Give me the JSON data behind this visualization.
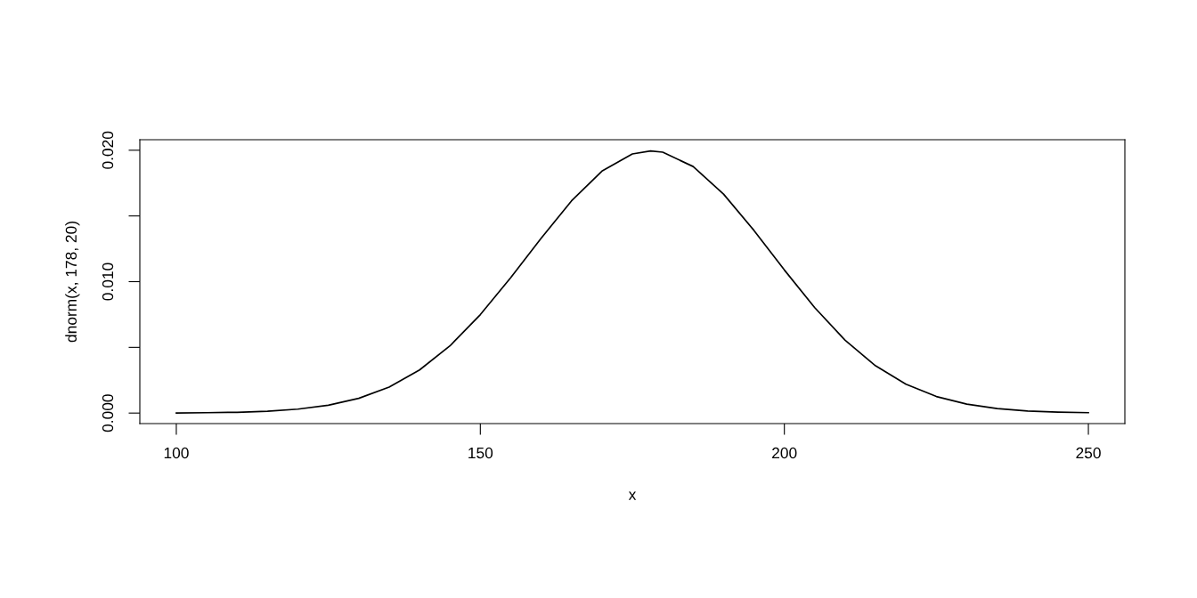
{
  "chart_data": {
    "type": "line",
    "xlabel": "x",
    "ylabel": "dnorm(x, 178, 20)",
    "x": [
      100,
      105,
      110,
      115,
      120,
      125,
      130,
      135,
      140,
      145,
      150,
      155,
      160,
      165,
      170,
      175,
      178,
      180,
      185,
      190,
      195,
      200,
      205,
      210,
      215,
      220,
      225,
      230,
      235,
      240,
      245,
      250
    ],
    "series": [
      {
        "color": "#000000",
        "values": [
          1e-05,
          3e-05,
          6e-05,
          0.00014,
          0.0003,
          0.0006,
          0.00112,
          0.00198,
          0.00328,
          0.00511,
          0.00749,
          0.0103,
          0.0133,
          0.01615,
          0.01841,
          0.01972,
          0.01995,
          0.01985,
          0.01876,
          0.01666,
          0.0139,
          0.01089,
          0.00802,
          0.00554,
          0.0036,
          0.0022,
          0.00126,
          0.00068,
          0.00034,
          0.00016,
          7e-05,
          3e-05
        ]
      }
    ],
    "xlim": [
      94,
      256
    ],
    "ylim": [
      -0.0008,
      0.0208
    ],
    "xticks": [
      100,
      150,
      200,
      250
    ],
    "yticks": [
      {
        "value": 0,
        "label": "0.000"
      },
      {
        "value": 0.005,
        "label": null
      },
      {
        "value": 0.01,
        "label": "0.010"
      },
      {
        "value": 0.015,
        "label": null
      },
      {
        "value": 0.02,
        "label": "0.020"
      }
    ],
    "grid": false,
    "legend": false,
    "marker": "none",
    "line_style": "solid"
  }
}
